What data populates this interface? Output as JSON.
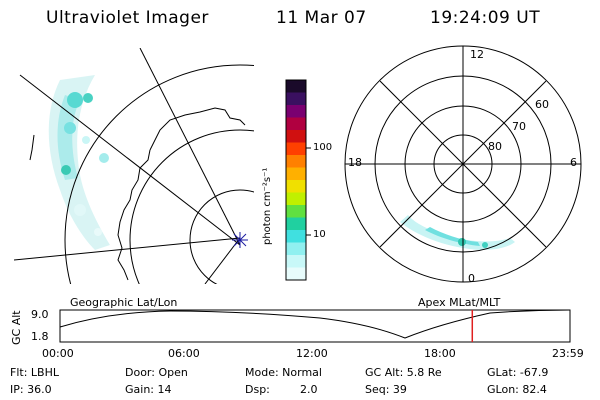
{
  "header": {
    "instrument": "Ultraviolet Imager",
    "date": "11 Mar 07",
    "time": "19:24:09 UT"
  },
  "colorbar": {
    "unit_label": "photon cm⁻²s⁻¹",
    "ticks": [
      "100",
      "10"
    ],
    "colors": [
      "#1a0a2a",
      "#3a1060",
      "#7a0070",
      "#b00040",
      "#d01010",
      "#ff4000",
      "#ff8000",
      "#ffb000",
      "#f0e000",
      "#c0f000",
      "#60e040",
      "#20d0a0",
      "#40e0e0",
      "#90f0f0",
      "#c8f8f8",
      "#e8fcfc"
    ]
  },
  "polar_plot": {
    "mlt_labels": {
      "top": "12",
      "left": "18",
      "right": "6",
      "bottom": "0"
    },
    "lat_labels": [
      "60",
      "70",
      "80"
    ]
  },
  "timeline": {
    "left_title": "Geographic Lat/Lon",
    "right_title": "Apex MLat/MLT",
    "axis_label": "GC Alt",
    "y_ticks": [
      "9.0",
      "1.8"
    ],
    "x_ticks": [
      "00:00",
      "06:00",
      "12:00",
      "18:00",
      "23:59"
    ],
    "current_time_fraction": 0.8084
  },
  "info": {
    "row1": {
      "flt": "Flt: LBHL",
      "door": "Door: Open",
      "mode": "Mode: Normal",
      "gcalt": "GC Alt: 5.8 Re",
      "glat": "GLat: -67.9"
    },
    "row2": {
      "ip": "IP: 36.0",
      "gain": "Gain: 14",
      "dsp_label": "Dsp:",
      "dsp_value": "2.0",
      "seq": "Seq: 39",
      "glon": "GLon: 82.4"
    }
  }
}
